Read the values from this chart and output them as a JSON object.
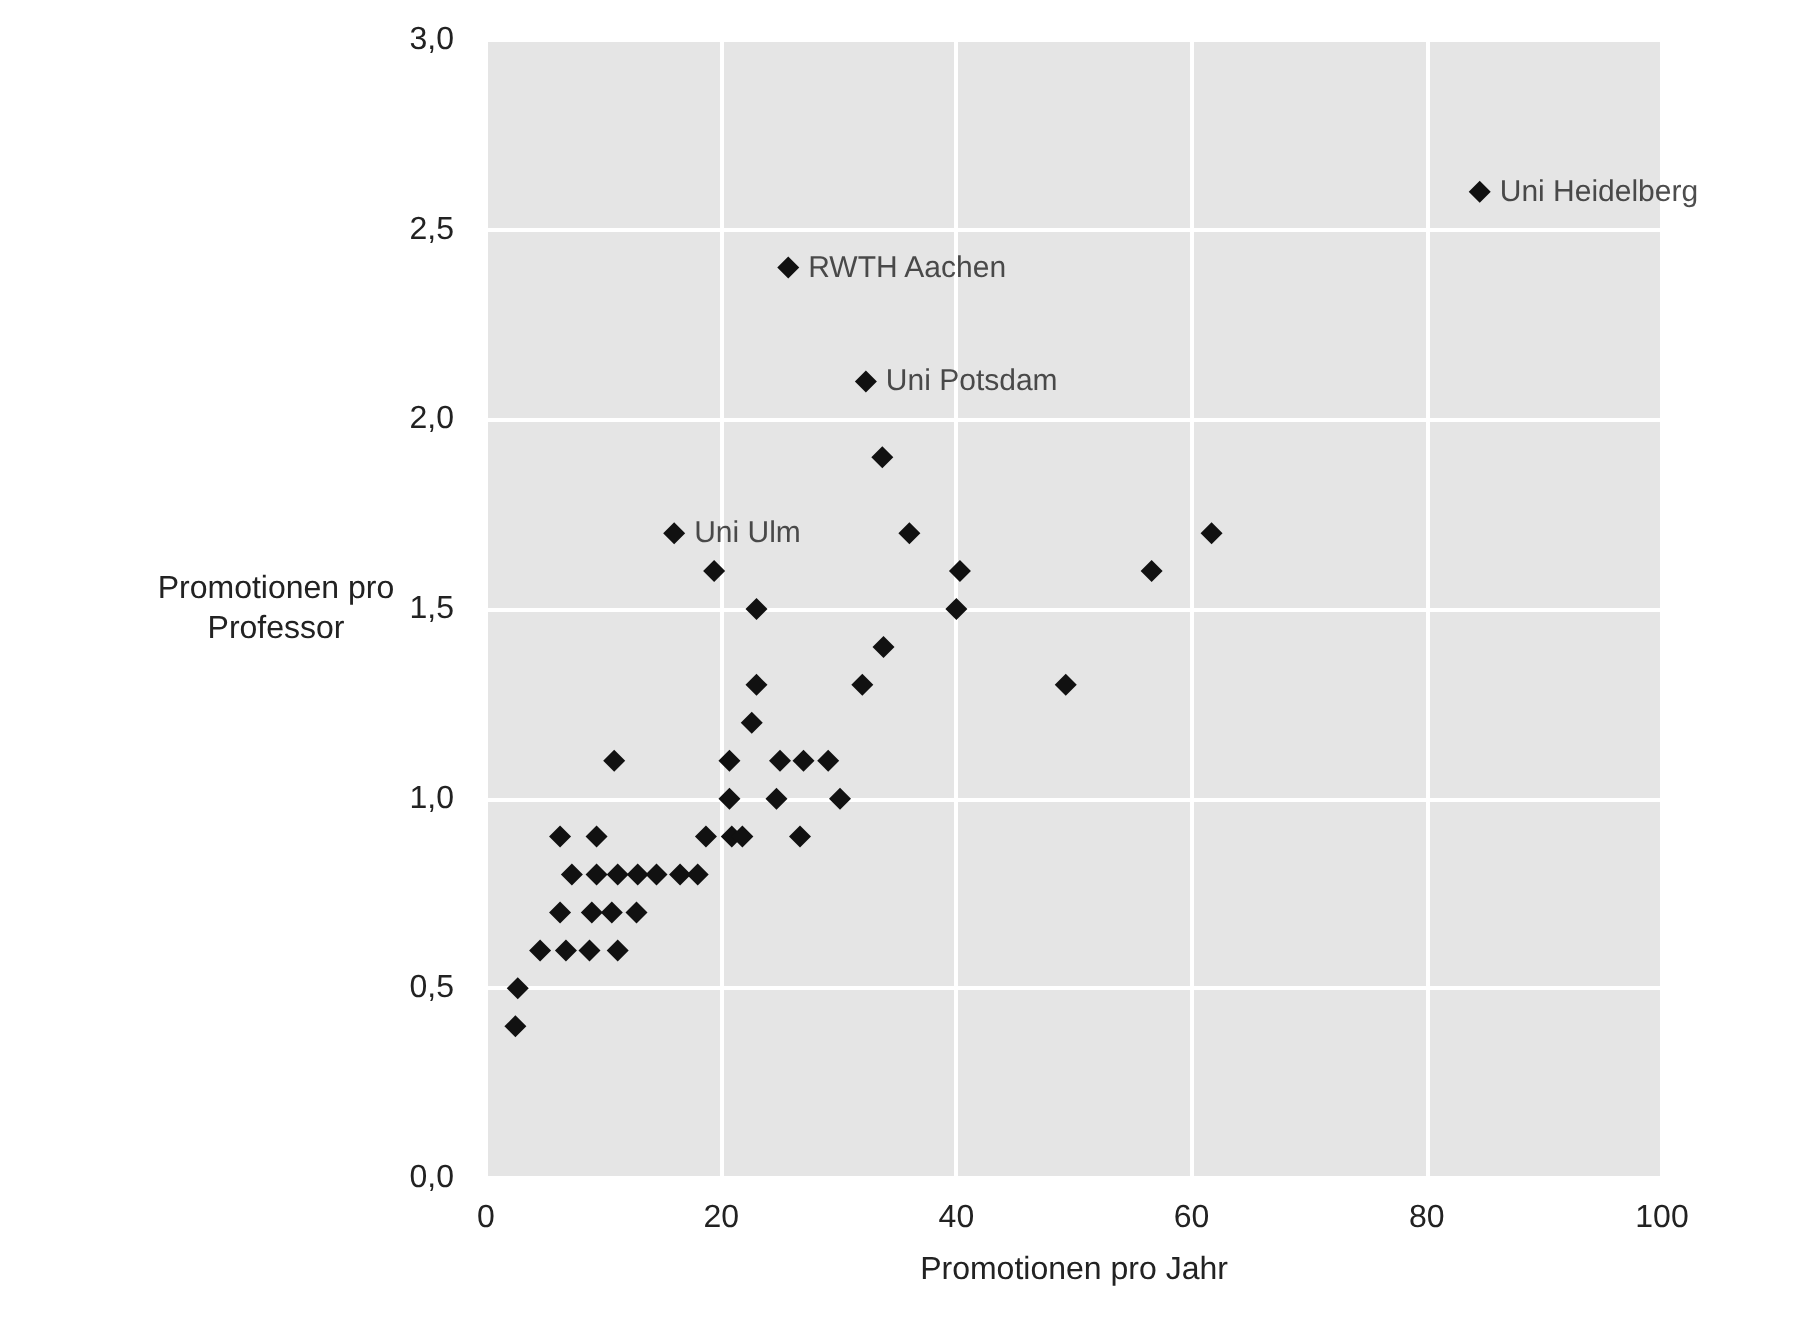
{
  "chart_data": {
    "type": "scatter",
    "xlabel": "Promotionen pro Jahr",
    "ylabel": "Promotionen pro Professor",
    "x": [
      2.5,
      2.7,
      4.6,
      6.8,
      8.8,
      11.2,
      6.3,
      9.0,
      10.7,
      12.8,
      7.3,
      9.4,
      11.2,
      12.9,
      14.5,
      16.5,
      18.0,
      6.3,
      9.4,
      18.7,
      20.9,
      21.8,
      26.7,
      20.7,
      24.7,
      30.1,
      10.9,
      20.7,
      25.0,
      27.0,
      29.1,
      22.6,
      23.0,
      32.0,
      49.3,
      33.8,
      23.0,
      40.0,
      19.4,
      40.3,
      56.6,
      16.0,
      36.0,
      61.7,
      33.7,
      32.3,
      25.7,
      84.5
    ],
    "series": [
      {
        "color": "#111111",
        "values": [
          0.4,
          0.5,
          0.6,
          0.6,
          0.6,
          0.6,
          0.7,
          0.7,
          0.7,
          0.7,
          0.8,
          0.8,
          0.8,
          0.8,
          0.8,
          0.8,
          0.8,
          0.9,
          0.9,
          0.9,
          0.9,
          0.9,
          0.9,
          1.0,
          1.0,
          1.0,
          1.1,
          1.1,
          1.1,
          1.1,
          1.1,
          1.2,
          1.3,
          1.3,
          1.3,
          1.4,
          1.5,
          1.5,
          1.6,
          1.6,
          1.6,
          1.7,
          1.7,
          1.7,
          1.9,
          2.1,
          2.4,
          2.6
        ]
      }
    ],
    "annotations": [
      {
        "text": "Uni Heidelberg",
        "x": 84.5,
        "y": 2.6
      },
      {
        "text": "RWTH Aachen",
        "x": 25.7,
        "y": 2.4
      },
      {
        "text": "Uni Potsdam",
        "x": 32.3,
        "y": 2.1
      },
      {
        "text": "Uni Ulm",
        "x": 16.0,
        "y": 1.7
      }
    ],
    "xlim": [
      0,
      100
    ],
    "xticks": [
      0,
      20,
      40,
      60,
      80,
      100
    ],
    "ylim": [
      0,
      3
    ],
    "yticks": [
      {
        "value": 0,
        "label": "0,0"
      },
      {
        "value": 0.5,
        "label": "0,5"
      },
      {
        "value": 1,
        "label": "1,0"
      },
      {
        "value": 1.5,
        "label": "1,5"
      },
      {
        "value": 2,
        "label": "2,0"
      },
      {
        "value": 2.5,
        "label": "2,5"
      },
      {
        "value": 3,
        "label": "3,0"
      }
    ],
    "grid": true,
    "marker": "diamond"
  }
}
